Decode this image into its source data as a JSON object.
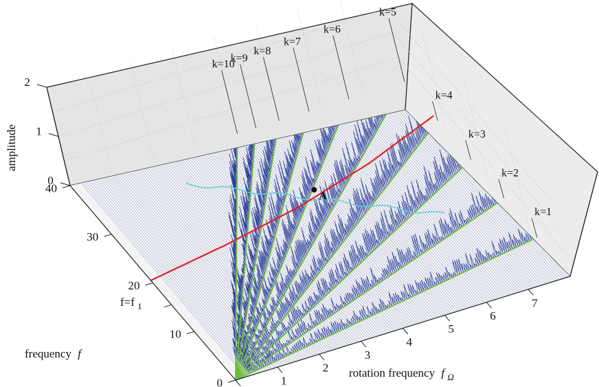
{
  "chart_data": {
    "type": "waterfall-3d",
    "z_axis": {
      "label": "amplitude",
      "ticks": [
        "0",
        "1",
        "2"
      ],
      "range": [
        0,
        2
      ]
    },
    "y_axis": {
      "label": "frequency",
      "label_symbol": "f",
      "ticks": [
        "0",
        "10",
        "20",
        "30",
        "40"
      ],
      "range": [
        0,
        40
      ],
      "extra_label": "f=f",
      "extra_label_sub": "1",
      "extra_label_value": 15.5
    },
    "x_axis": {
      "label": "rotation frequency",
      "label_symbol": "f",
      "label_symbol_sub": "Ω",
      "ticks": [
        "0",
        "1",
        "2",
        "3",
        "4",
        "5",
        "6",
        "7"
      ],
      "range": [
        0,
        8
      ]
    },
    "order_lines": [
      {
        "label": "k=1",
        "k": 1
      },
      {
        "label": "k=2",
        "k": 2
      },
      {
        "label": "k=3",
        "k": 3
      },
      {
        "label": "k=4",
        "k": 4
      },
      {
        "label": "k=5",
        "k": 5
      },
      {
        "label": "k=6",
        "k": 6
      },
      {
        "label": "k=7",
        "k": 7
      },
      {
        "label": "k=8",
        "k": 8
      },
      {
        "label": "k=9",
        "k": 9
      },
      {
        "label": "k=10",
        "k": 10
      }
    ],
    "resonance_curve": {
      "points": [
        [
          0,
          20.5
        ],
        [
          2,
          22.5
        ],
        [
          4,
          25
        ],
        [
          6,
          28.5
        ],
        [
          8,
          33
        ]
      ]
    },
    "point_A": {
      "label": "A",
      "x": 4.55,
      "y": 27
    },
    "grid": true,
    "colors": {
      "order_lines": "#6cbb3c",
      "resonance": "#e02424",
      "spectra": "#2b3f9a",
      "cyan_ridge": "#67d0e0",
      "walls": "#e6e6e6"
    }
  }
}
